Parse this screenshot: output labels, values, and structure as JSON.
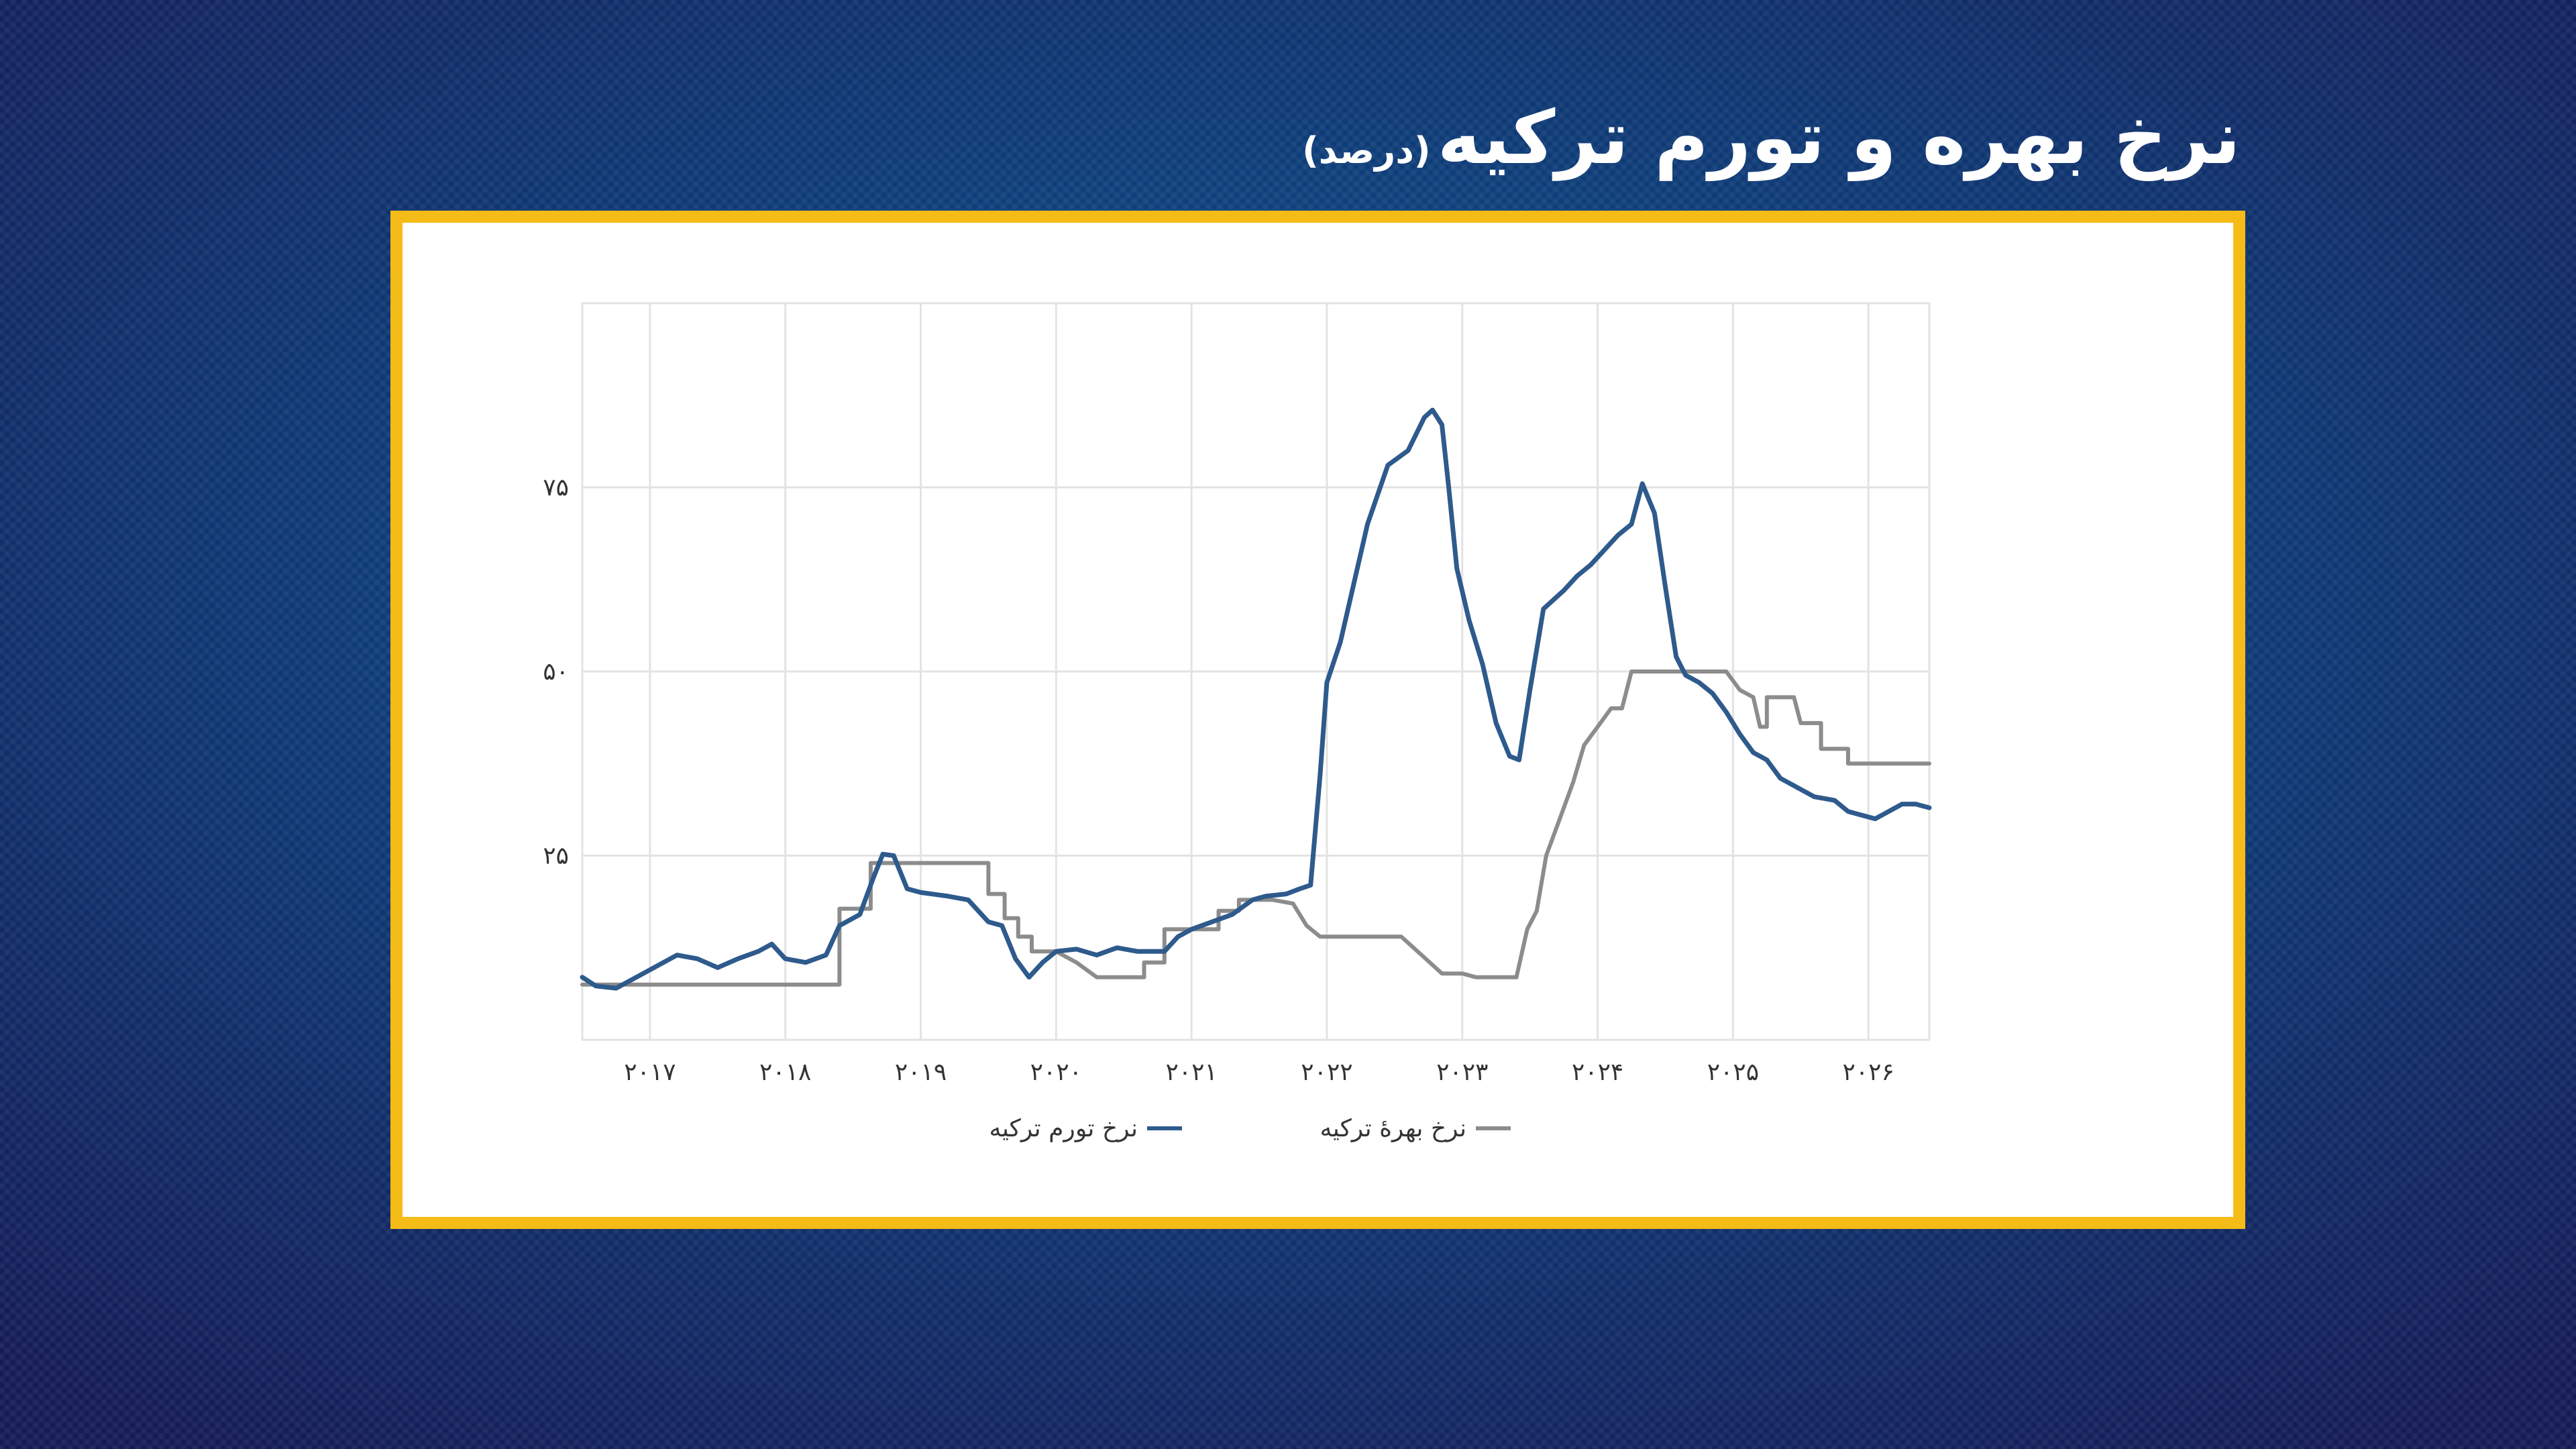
{
  "title": {
    "main": "نرخ بهره و تورم ترکیه",
    "unit": "(درصد)"
  },
  "colors": {
    "frame": "#f5bb16",
    "inflation": "#2e5a8c",
    "interest": "#8c8c8c",
    "grid": "#e3e3e3"
  },
  "chart_data": {
    "type": "line",
    "grid": true,
    "legend_position": "bottom-center",
    "xlim": [
      2016.5,
      2026.45
    ],
    "ylim": [
      0,
      100
    ],
    "x_ticks": [
      2017,
      2018,
      2019,
      2020,
      2021,
      2022,
      2023,
      2024,
      2025,
      2026
    ],
    "x_tick_labels": [
      "۲۰۱۷",
      "۲۰۱۸",
      "۲۰۱۹",
      "۲۰۲۰",
      "۲۰۲۱",
      "۲۰۲۲",
      "۲۰۲۳",
      "۲۰۲۴",
      "۲۰۲۵",
      "۲۰۲۶"
    ],
    "y_ticks": [
      25,
      50,
      75
    ],
    "y_tick_labels": [
      "۲۵",
      "۵۰",
      "۷۵"
    ],
    "series": [
      {
        "name": "نرخ تورم ترکیه",
        "color": "#2e5a8c",
        "points": [
          [
            2016.5,
            8.5
          ],
          [
            2016.6,
            7.3
          ],
          [
            2016.75,
            7.0
          ],
          [
            2016.9,
            8.5
          ],
          [
            2017.05,
            10.0
          ],
          [
            2017.2,
            11.5
          ],
          [
            2017.35,
            11.0
          ],
          [
            2017.5,
            9.8
          ],
          [
            2017.65,
            11.0
          ],
          [
            2017.8,
            12.0
          ],
          [
            2017.9,
            13.0
          ],
          [
            2018.0,
            11.0
          ],
          [
            2018.15,
            10.5
          ],
          [
            2018.3,
            11.5
          ],
          [
            2018.4,
            15.5
          ],
          [
            2018.55,
            17.0
          ],
          [
            2018.65,
            22.0
          ],
          [
            2018.72,
            25.2
          ],
          [
            2018.8,
            25.0
          ],
          [
            2018.9,
            20.5
          ],
          [
            2019.0,
            20.0
          ],
          [
            2019.2,
            19.5
          ],
          [
            2019.35,
            19.0
          ],
          [
            2019.5,
            16.0
          ],
          [
            2019.6,
            15.5
          ],
          [
            2019.7,
            11.0
          ],
          [
            2019.8,
            8.5
          ],
          [
            2019.9,
            10.5
          ],
          [
            2020.0,
            12.0
          ],
          [
            2020.15,
            12.3
          ],
          [
            2020.3,
            11.5
          ],
          [
            2020.45,
            12.5
          ],
          [
            2020.6,
            12.0
          ],
          [
            2020.8,
            12.0
          ],
          [
            2020.9,
            14.0
          ],
          [
            2021.0,
            15.0
          ],
          [
            2021.15,
            16.0
          ],
          [
            2021.3,
            17.0
          ],
          [
            2021.45,
            19.0
          ],
          [
            2021.55,
            19.5
          ],
          [
            2021.7,
            19.8
          ],
          [
            2021.8,
            20.5
          ],
          [
            2021.88,
            21.0
          ],
          [
            2021.95,
            36.0
          ],
          [
            2022.0,
            48.5
          ],
          [
            2022.1,
            54.0
          ],
          [
            2022.2,
            62.0
          ],
          [
            2022.3,
            70.0
          ],
          [
            2022.45,
            78.0
          ],
          [
            2022.6,
            80.0
          ],
          [
            2022.72,
            84.5
          ],
          [
            2022.78,
            85.5
          ],
          [
            2022.85,
            83.5
          ],
          [
            2022.9,
            75.0
          ],
          [
            2022.96,
            64.0
          ],
          [
            2023.05,
            57.0
          ],
          [
            2023.15,
            51.0
          ],
          [
            2023.25,
            43.0
          ],
          [
            2023.35,
            38.5
          ],
          [
            2023.42,
            38.0
          ],
          [
            2023.5,
            47.5
          ],
          [
            2023.6,
            58.5
          ],
          [
            2023.75,
            61.0
          ],
          [
            2023.85,
            63.0
          ],
          [
            2023.95,
            64.5
          ],
          [
            2024.05,
            66.5
          ],
          [
            2024.15,
            68.5
          ],
          [
            2024.25,
            70.0
          ],
          [
            2024.33,
            75.5
          ],
          [
            2024.42,
            71.5
          ],
          [
            2024.5,
            61.5
          ],
          [
            2024.58,
            52.0
          ],
          [
            2024.65,
            49.5
          ],
          [
            2024.75,
            48.5
          ],
          [
            2024.85,
            47.0
          ],
          [
            2024.95,
            44.5
          ],
          [
            2025.05,
            41.5
          ],
          [
            2025.15,
            39.0
          ],
          [
            2025.25,
            38.0
          ],
          [
            2025.35,
            35.5
          ],
          [
            2025.5,
            34.0
          ],
          [
            2025.6,
            33.0
          ],
          [
            2025.75,
            32.5
          ],
          [
            2025.85,
            31.0
          ],
          [
            2025.95,
            30.5
          ],
          [
            2026.05,
            30.0
          ],
          [
            2026.15,
            31.0
          ],
          [
            2026.25,
            32.0
          ],
          [
            2026.35,
            32.0
          ],
          [
            2026.45,
            31.5
          ]
        ]
      },
      {
        "name": "نرخ بهرهٔ ترکیه",
        "color": "#8c8c8c",
        "points": [
          [
            2016.5,
            7.5
          ],
          [
            2018.4,
            7.5
          ],
          [
            2018.4,
            17.8
          ],
          [
            2018.63,
            17.8
          ],
          [
            2018.63,
            24.0
          ],
          [
            2019.5,
            24.0
          ],
          [
            2019.5,
            19.8
          ],
          [
            2019.62,
            19.8
          ],
          [
            2019.62,
            16.5
          ],
          [
            2019.72,
            16.5
          ],
          [
            2019.72,
            14.0
          ],
          [
            2019.82,
            14.0
          ],
          [
            2019.82,
            12.0
          ],
          [
            2020.0,
            12.0
          ],
          [
            2020.15,
            10.5
          ],
          [
            2020.3,
            8.5
          ],
          [
            2020.65,
            8.5
          ],
          [
            2020.65,
            10.5
          ],
          [
            2020.8,
            10.5
          ],
          [
            2020.8,
            15.0
          ],
          [
            2021.2,
            15.0
          ],
          [
            2021.2,
            17.5
          ],
          [
            2021.35,
            17.5
          ],
          [
            2021.35,
            19.0
          ],
          [
            2021.6,
            19.0
          ],
          [
            2021.75,
            18.5
          ],
          [
            2021.85,
            15.5
          ],
          [
            2021.95,
            14.0
          ],
          [
            2022.55,
            14.0
          ],
          [
            2022.7,
            11.5
          ],
          [
            2022.85,
            9.0
          ],
          [
            2023.0,
            9.0
          ],
          [
            2023.1,
            8.5
          ],
          [
            2023.4,
            8.5
          ],
          [
            2023.48,
            15.0
          ],
          [
            2023.55,
            17.5
          ],
          [
            2023.62,
            25.0
          ],
          [
            2023.72,
            30.0
          ],
          [
            2023.82,
            35.0
          ],
          [
            2023.9,
            40.0
          ],
          [
            2024.0,
            42.5
          ],
          [
            2024.1,
            45.0
          ],
          [
            2024.18,
            45.0
          ],
          [
            2024.25,
            50.0
          ],
          [
            2024.95,
            50.0
          ],
          [
            2025.05,
            47.5
          ],
          [
            2025.15,
            46.5
          ],
          [
            2025.2,
            42.5
          ],
          [
            2025.25,
            42.5
          ],
          [
            2025.25,
            46.5
          ],
          [
            2025.45,
            46.5
          ],
          [
            2025.5,
            43.0
          ],
          [
            2025.65,
            43.0
          ],
          [
            2025.65,
            39.5
          ],
          [
            2025.85,
            39.5
          ],
          [
            2025.85,
            37.5
          ],
          [
            2026.45,
            37.5
          ]
        ]
      }
    ]
  }
}
